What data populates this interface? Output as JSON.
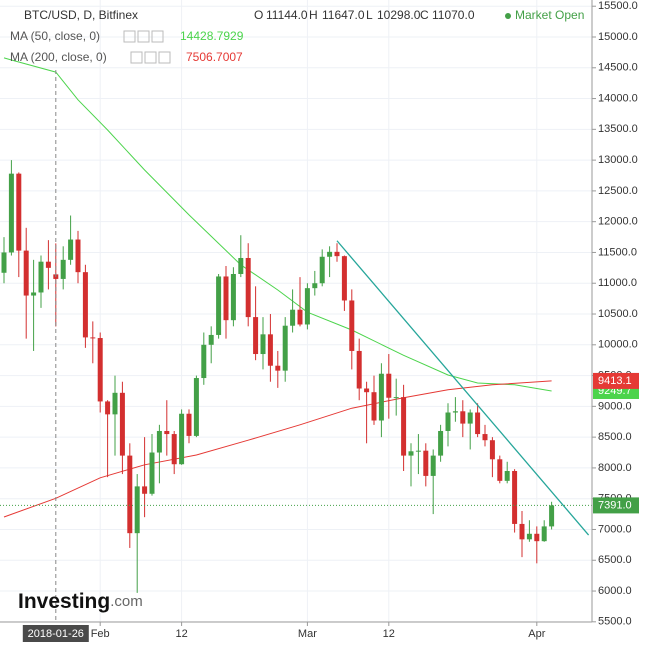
{
  "chart_data": {
    "type": "candlestick",
    "title": "BTC/USD, D, Bitfinex",
    "ohlc_header": {
      "O": {
        "value": 11144,
        "label": "11144.0"
      },
      "H": {
        "value": 11647,
        "label": "11647.0"
      },
      "L": {
        "value": 10298,
        "label": "10298.0"
      },
      "C": {
        "value": 11070,
        "label": "11070.0"
      }
    },
    "status": "Market Open",
    "up_color": "#43a047",
    "down_color": "#d32f2f",
    "x": [
      "2018-01-19",
      "2018-01-20",
      "2018-01-21",
      "2018-01-22",
      "2018-01-23",
      "2018-01-24",
      "2018-01-25",
      "2018-01-26",
      "2018-01-27",
      "2018-01-28",
      "2018-01-29",
      "2018-01-30",
      "2018-01-31",
      "2018-02-01",
      "2018-02-02",
      "2018-02-03",
      "2018-02-04",
      "2018-02-05",
      "2018-02-06",
      "2018-02-07",
      "2018-02-08",
      "2018-02-09",
      "2018-02-10",
      "2018-02-11",
      "2018-02-12",
      "2018-02-13",
      "2018-02-14",
      "2018-02-15",
      "2018-02-16",
      "2018-02-17",
      "2018-02-18",
      "2018-02-19",
      "2018-02-20",
      "2018-02-21",
      "2018-02-22",
      "2018-02-23",
      "2018-02-24",
      "2018-02-25",
      "2018-02-26",
      "2018-02-27",
      "2018-02-28",
      "2018-03-01",
      "2018-03-02",
      "2018-03-03",
      "2018-03-04",
      "2018-03-05",
      "2018-03-06",
      "2018-03-07",
      "2018-03-08",
      "2018-03-09",
      "2018-03-10",
      "2018-03-11",
      "2018-03-12",
      "2018-03-13",
      "2018-03-14",
      "2018-03-15",
      "2018-03-16",
      "2018-03-17",
      "2018-03-18",
      "2018-03-19",
      "2018-03-20",
      "2018-03-21",
      "2018-03-22",
      "2018-03-23",
      "2018-03-24",
      "2018-03-25",
      "2018-03-26",
      "2018-03-27",
      "2018-03-28",
      "2018-03-29",
      "2018-03-30",
      "2018-03-31",
      "2018-04-01",
      "2018-04-02",
      "2018-04-03"
    ],
    "open": [
      11170,
      11500,
      12780,
      11530,
      10800,
      10850,
      11350,
      11144,
      11070,
      11380,
      11710,
      11180,
      10120,
      10110,
      9080,
      8870,
      9220,
      8200,
      6940,
      7700,
      7580,
      8250,
      8600,
      8550,
      8060,
      8880,
      8520,
      9460,
      10000,
      10160,
      11110,
      10400,
      11150,
      11410,
      10450,
      9850,
      10170,
      9660,
      9580,
      10310,
      10570,
      10330,
      10920,
      11000,
      11430,
      11510,
      11440,
      10720,
      9900,
      9290,
      9230,
      8770,
      9530,
      9140,
      9150,
      8200,
      8270,
      8280,
      7870,
      8200,
      8600,
      8900,
      8920,
      8720,
      8900,
      8550,
      8450,
      8140,
      7790,
      7950,
      7090,
      6840,
      6930,
      6810,
      7050
    ],
    "high": [
      11750,
      13000,
      12800,
      11900,
      11380,
      11450,
      11700,
      11647,
      11600,
      12100,
      11850,
      11300,
      10380,
      10200,
      9100,
      9500,
      9400,
      8400,
      7900,
      8500,
      8550,
      8700,
      9100,
      8600,
      8950,
      8950,
      9500,
      10200,
      10300,
      11150,
      11280,
      11260,
      11780,
      11650,
      10950,
      10450,
      10500,
      9900,
      10450,
      10900,
      11100,
      11000,
      11200,
      11550,
      11600,
      11650,
      11450,
      10900,
      10100,
      9400,
      9500,
      9700,
      9850,
      9450,
      9350,
      8400,
      8550,
      8400,
      8300,
      8700,
      9050,
      9150,
      9100,
      8950,
      9050,
      8700,
      8500,
      8200,
      8100,
      7980,
      7300,
      7150,
      7050,
      7150,
      7450
    ],
    "low": [
      11000,
      11450,
      11100,
      10100,
      9900,
      10600,
      10900,
      10298,
      10900,
      11300,
      11000,
      9950,
      9700,
      8900,
      7850,
      8200,
      7900,
      6700,
      5970,
      7200,
      7550,
      7750,
      8200,
      7900,
      8050,
      8400,
      8500,
      9350,
      9700,
      10100,
      10100,
      10300,
      11100,
      10300,
      9750,
      9600,
      9400,
      9300,
      9400,
      10200,
      10300,
      10250,
      10800,
      10950,
      11100,
      11350,
      10550,
      9600,
      9100,
      8400,
      8700,
      8500,
      8800,
      8850,
      7950,
      7700,
      7900,
      7700,
      7250,
      8100,
      8350,
      8750,
      8500,
      8300,
      8500,
      8350,
      7850,
      7750,
      7750,
      6950,
      6550,
      6800,
      6450,
      6800,
      7000
    ],
    "close": [
      11500,
      12780,
      11530,
      10800,
      10850,
      11350,
      11250,
      11070,
      11380,
      11710,
      11180,
      10120,
      10110,
      9080,
      8870,
      9220,
      8200,
      6940,
      7700,
      7580,
      8250,
      8600,
      8550,
      8060,
      8880,
      8520,
      9460,
      10000,
      10160,
      11110,
      10400,
      11150,
      11410,
      10450,
      9850,
      10170,
      9660,
      9580,
      10310,
      10570,
      10330,
      10920,
      11000,
      11430,
      11510,
      11440,
      10720,
      9900,
      9290,
      9230,
      8770,
      9530,
      9140,
      9150,
      8200,
      8270,
      8280,
      7870,
      8200,
      8600,
      8900,
      8920,
      8720,
      8900,
      8550,
      8450,
      8140,
      7790,
      7950,
      7090,
      6840,
      6930,
      6810,
      7050,
      7391
    ],
    "ma_lines": [
      {
        "name": "MA (50, close, 0)",
        "color": "#4cd44c",
        "legend_value": 14428.7929,
        "last_value": 9249.7,
        "x": [
          "2018-01-19",
          "2018-01-20",
          "2018-01-26",
          "2018-01-29",
          "2018-02-02",
          "2018-02-07",
          "2018-02-13",
          "2018-02-20",
          "2018-02-25",
          "2018-03-01",
          "2018-03-07",
          "2018-03-14",
          "2018-03-20",
          "2018-03-24",
          "2018-03-29",
          "2018-04-03"
        ],
        "values": [
          14660,
          14626,
          14430,
          13980,
          13490,
          12840,
          12110,
          11300,
          10890,
          10530,
          10240,
          9830,
          9510,
          9380,
          9350,
          9249.7
        ]
      },
      {
        "name": "MA (200, close, 0)",
        "color": "#e53935",
        "legend_value": 7506.7007,
        "last_value": 9413.1,
        "x": [
          "2018-01-19",
          "2018-01-26",
          "2018-02-01",
          "2018-02-07",
          "2018-02-14",
          "2018-02-21",
          "2018-02-28",
          "2018-03-07",
          "2018-03-14",
          "2018-03-20",
          "2018-03-26",
          "2018-04-03"
        ],
        "values": [
          7203,
          7507,
          7840,
          8050,
          8210,
          8450,
          8700,
          8970,
          9140,
          9270,
          9350,
          9413.1
        ]
      }
    ],
    "last_price": {
      "value": 7391,
      "label": "7391.0"
    },
    "trendline": {
      "color": "#26a69a",
      "x": [
        "2018-03-05",
        "2018-04-08"
      ],
      "values": [
        11690,
        6910
      ]
    },
    "crosshair": "2018-01-26",
    "xlim": [
      "2018-01-19",
      "2018-04-08"
    ],
    "xticks": [
      {
        "value": "2018-02-01",
        "label": "Feb"
      },
      {
        "value": "2018-02-12",
        "label": "12"
      },
      {
        "value": "2018-03-01",
        "label": "Mar"
      },
      {
        "value": "2018-03-12",
        "label": "12"
      },
      {
        "value": "2018-04-01",
        "label": "Apr"
      }
    ],
    "ylim": [
      5497,
      15601
    ],
    "yticks": [
      {
        "value": 5500,
        "label": "5500.0"
      },
      {
        "value": 6000,
        "label": "6000.0"
      },
      {
        "value": 6500,
        "label": "6500.0"
      },
      {
        "value": 7000,
        "label": "7000.0"
      },
      {
        "value": 7500,
        "label": "7500.0"
      },
      {
        "value": 8000,
        "label": "8000.0"
      },
      {
        "value": 8500,
        "label": "8500.0"
      },
      {
        "value": 9000,
        "label": "9000.0"
      },
      {
        "value": 9500,
        "label": "9500.0"
      },
      {
        "value": 10000,
        "label": "10000.0"
      },
      {
        "value": 10500,
        "label": "10500.0"
      },
      {
        "value": 11000,
        "label": "11000.0"
      },
      {
        "value": 11500,
        "label": "11500.0"
      },
      {
        "value": 12000,
        "label": "12000.0"
      },
      {
        "value": 12500,
        "label": "12500.0"
      },
      {
        "value": 13000,
        "label": "13000.0"
      },
      {
        "value": 13500,
        "label": "13500.0"
      },
      {
        "value": 14000,
        "label": "14000.0"
      },
      {
        "value": 14500,
        "label": "14500.0"
      },
      {
        "value": 15000,
        "label": "15000.0"
      },
      {
        "value": 15500,
        "label": "15500.0"
      }
    ],
    "grid": true,
    "logo": {
      "name": "Investing",
      "suffix": ".com"
    }
  }
}
